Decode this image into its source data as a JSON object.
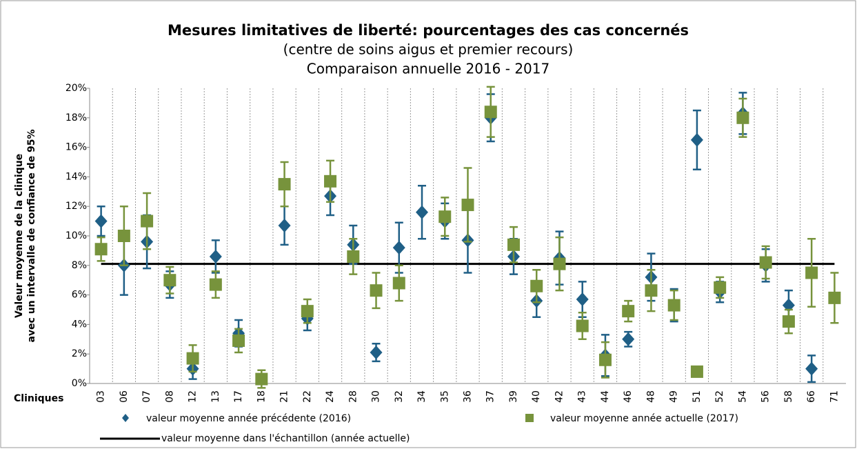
{
  "chart_data": {
    "type": "errorbar",
    "title": "Mesures limitatives de liberté: pourcentages des cas concernés",
    "subtitle": [
      "(centre de soins aigus et premier recours)",
      "Comparaison annuelle 2016 - 2017"
    ],
    "y_label": [
      "Valeur moyenne de la clinique",
      "avec un intervalle de confiance de 95%"
    ],
    "x_label": "Cliniques",
    "categories": [
      "03",
      "06",
      "07",
      "08",
      "12",
      "13",
      "17",
      "18",
      "21",
      "22",
      "24",
      "28",
      "30",
      "32",
      "34",
      "35",
      "36",
      "37",
      "39",
      "40",
      "42",
      "43",
      "44",
      "46",
      "48",
      "49",
      "51",
      "52",
      "54",
      "56",
      "58",
      "66",
      "71"
    ],
    "series": [
      {
        "name": "valeur moyenne année précédente (2016)",
        "color": "#1f5f86",
        "marker": "diamond",
        "values": [
          11.0,
          8.0,
          9.6,
          6.7,
          1.0,
          8.6,
          3.4,
          null,
          10.7,
          4.4,
          12.7,
          9.4,
          2.1,
          9.2,
          11.6,
          11.0,
          9.7,
          18.0,
          8.6,
          5.6,
          8.5,
          5.7,
          1.9,
          3.0,
          7.2,
          5.3,
          16.5,
          6.2,
          18.3,
          8.0,
          5.3,
          1.0,
          null
        ],
        "errors": [
          1.0,
          2.0,
          1.8,
          0.9,
          0.7,
          1.1,
          0.9,
          null,
          1.3,
          0.8,
          1.3,
          1.3,
          0.6,
          1.7,
          1.8,
          1.2,
          2.2,
          1.6,
          1.2,
          1.1,
          1.8,
          1.2,
          1.4,
          0.5,
          1.6,
          1.1,
          2.0,
          0.7,
          1.4,
          1.1,
          1.0,
          0.9,
          null
        ]
      },
      {
        "name": "valeur moyenne année actuelle (2017)",
        "color": "#77933c",
        "marker": "square",
        "values": [
          9.1,
          10.0,
          11.0,
          7.0,
          1.7,
          6.7,
          2.9,
          0.3,
          13.5,
          4.9,
          13.7,
          8.6,
          6.3,
          6.8,
          null,
          11.3,
          12.1,
          18.4,
          9.4,
          6.6,
          8.1,
          3.9,
          1.6,
          4.9,
          6.3,
          5.3,
          0.8,
          6.5,
          18.0,
          8.2,
          4.2,
          7.5,
          5.8
        ],
        "errors": [
          0.8,
          2.0,
          1.9,
          0.9,
          0.9,
          0.9,
          0.8,
          0.6,
          1.5,
          0.8,
          1.4,
          1.2,
          1.2,
          1.2,
          null,
          1.3,
          2.5,
          1.7,
          1.2,
          1.1,
          1.8,
          0.9,
          1.2,
          0.7,
          1.4,
          1.0,
          0.3,
          0.7,
          1.3,
          1.1,
          0.8,
          2.3,
          1.7
        ]
      }
    ],
    "mean_line": {
      "name": "valeur moyenne dans l'échantillon (année actuelle)",
      "value": 8.1,
      "color": "#000000"
    },
    "ylim": [
      0,
      20
    ],
    "yticks": [
      {
        "value": 0,
        "label": "0%"
      },
      {
        "value": 2,
        "label": "2%"
      },
      {
        "value": 4,
        "label": "4%"
      },
      {
        "value": 6,
        "label": "6%"
      },
      {
        "value": 8,
        "label": "8%"
      },
      {
        "value": 10,
        "label": "10%"
      },
      {
        "value": 12,
        "label": "12%"
      },
      {
        "value": 14,
        "label": "14%"
      },
      {
        "value": 16,
        "label": "16%"
      },
      {
        "value": 18,
        "label": "18%"
      },
      {
        "value": 20,
        "label": "20%"
      }
    ],
    "grid": true
  }
}
